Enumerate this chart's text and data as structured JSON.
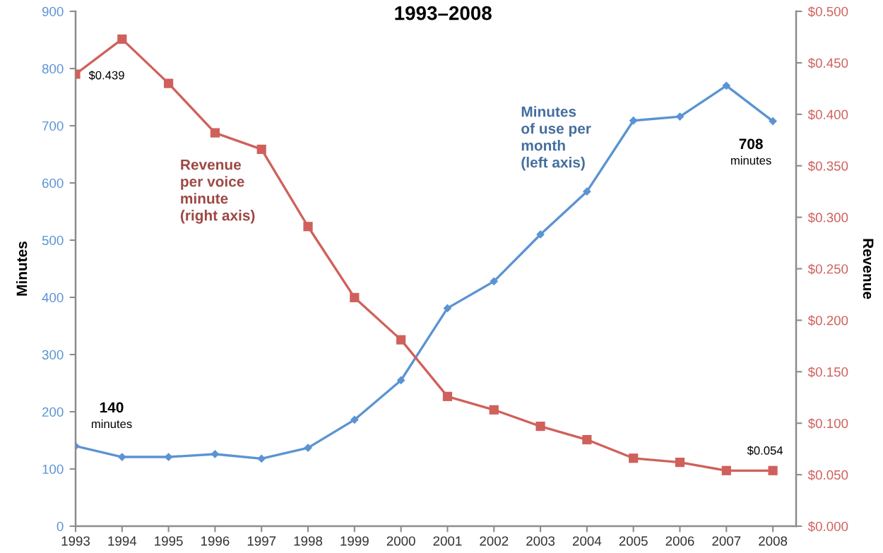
{
  "chart_data": {
    "type": "line",
    "title": "1993–2008",
    "ylabel": "Minutes",
    "y2label": "Revenue",
    "x": [
      1993,
      1994,
      1995,
      1996,
      1997,
      1998,
      1999,
      2000,
      2001,
      2002,
      2003,
      2004,
      2005,
      2006,
      2007,
      2008
    ],
    "xlim": [
      1993,
      2008.5
    ],
    "xticks": [
      1993,
      1994,
      1995,
      1996,
      1997,
      1998,
      1999,
      2000,
      2001,
      2002,
      2003,
      2004,
      2005,
      2006,
      2007,
      2008
    ],
    "ylim": [
      0,
      900
    ],
    "yticks": [
      0,
      100,
      200,
      300,
      400,
      500,
      600,
      700,
      800,
      900
    ],
    "y2lim": [
      0,
      0.5
    ],
    "y2ticks": [
      {
        "value": 0,
        "label": "$0.000"
      },
      {
        "value": 0.05,
        "label": "$0.050"
      },
      {
        "value": 0.1,
        "label": "$0.100"
      },
      {
        "value": 0.15,
        "label": "$0.150"
      },
      {
        "value": 0.2,
        "label": "$0.200"
      },
      {
        "value": 0.25,
        "label": "$0.250"
      },
      {
        "value": 0.3,
        "label": "$0.300"
      },
      {
        "value": 0.35,
        "label": "$0.350"
      },
      {
        "value": 0.4,
        "label": "$0.400"
      },
      {
        "value": 0.45,
        "label": "$0.450"
      },
      {
        "value": 0.5,
        "label": "$0.500"
      }
    ],
    "series": [
      {
        "name": "Minutes\nof use per\nmonth\n(left axis)",
        "color": "#5b93d3",
        "marker": "diamond",
        "values": [
          140,
          121,
          121,
          126,
          118,
          137,
          186,
          255,
          381,
          428,
          510,
          585,
          709,
          716,
          770,
          708
        ],
        "value_labels": [
          "140\nminutes",
          null,
          null,
          null,
          null,
          null,
          null,
          null,
          null,
          null,
          null,
          null,
          null,
          null,
          null,
          "708\nminutes"
        ]
      },
      {
        "name": "Revenue\nper voice\nminute\n(right axis)",
        "color": "#d0605b",
        "marker": "square",
        "axis": "y2",
        "values": [
          0.439,
          0.473,
          0.43,
          0.382,
          0.366,
          0.291,
          0.222,
          0.181,
          0.126,
          0.113,
          0.097,
          0.084,
          0.066,
          0.062,
          0.054,
          0.054
        ],
        "value_labels": [
          "$0.439",
          null,
          null,
          null,
          null,
          null,
          null,
          null,
          null,
          null,
          null,
          null,
          null,
          null,
          null,
          "$0.054"
        ]
      }
    ],
    "line_style": "solid",
    "grid": false
  }
}
